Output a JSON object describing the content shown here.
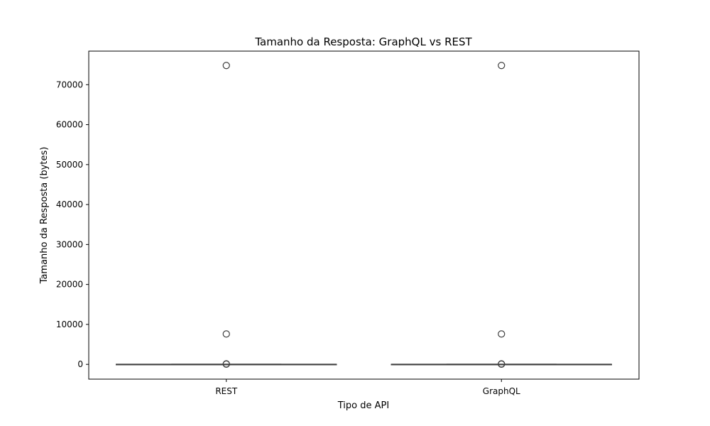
{
  "chart_data": {
    "type": "boxplot",
    "title": "Tamanho da Resposta: GraphQL vs REST",
    "xlabel": "Tipo de API",
    "ylabel": "Tamanho da Resposta (bytes)",
    "categories": [
      "REST",
      "GraphQL"
    ],
    "ylim": [
      -3700,
      78400
    ],
    "yticks": [
      0,
      10000,
      20000,
      30000,
      40000,
      50000,
      60000,
      70000
    ],
    "ytick_labels": [
      "0",
      "10000",
      "20000",
      "30000",
      "40000",
      "50000",
      "60000",
      "70000"
    ],
    "grid": false,
    "boxes": [
      {
        "category": "REST",
        "whisker_low": 0,
        "q1": 0,
        "median": 0,
        "q3": 0,
        "whisker_high": 0,
        "outliers": [
          74800,
          7600,
          120,
          60
        ]
      },
      {
        "category": "GraphQL",
        "whisker_low": 0,
        "q1": 0,
        "median": 0,
        "q3": 0,
        "whisker_high": 0,
        "outliers": [
          74800,
          7600,
          120,
          60
        ]
      }
    ],
    "colors": {
      "box": "#3f3f3f",
      "outlier_stroke": "#3f3f3f",
      "frame": "#000000"
    }
  }
}
